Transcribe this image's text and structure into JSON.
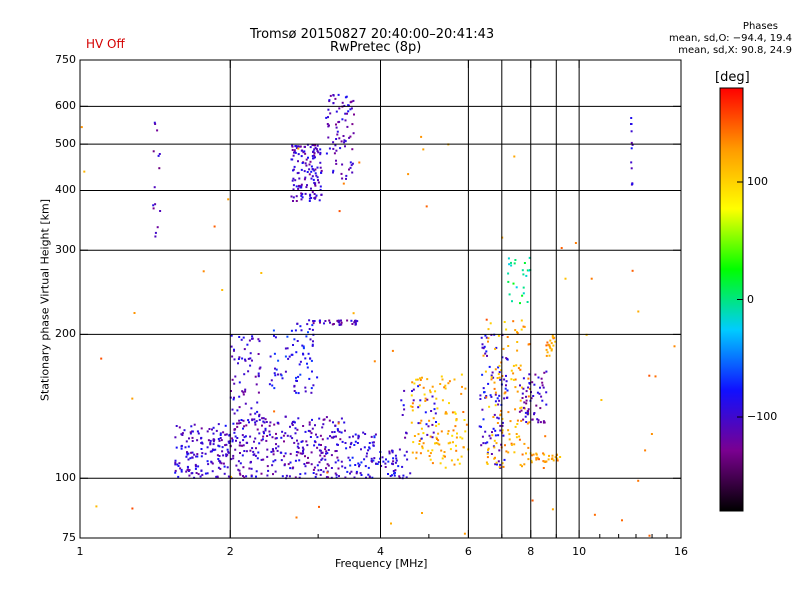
{
  "header": {
    "title_line1": "Tromsø 20150827 20:40:00–20:41:43",
    "title_line2": "RwPretec (8p)",
    "status_text": "HV Off",
    "stats_title": "Phases",
    "stats_o": "mean, sd,O: −94.4, 19.4",
    "stats_x": "mean, sd,X:  90.8, 24.9"
  },
  "chart_data": {
    "type": "scatter",
    "title": "Tromsø 20150827 20:40:00–20:41:43",
    "subtitle": "RwPretec (8p)",
    "xlabel": "Frequency [MHz]",
    "ylabel": "Stationary phase Virtual Height [km]",
    "xscale": "log",
    "yscale": "log",
    "xlim": [
      1,
      16
    ],
    "ylim": [
      75,
      750
    ],
    "x_ticks": [
      1,
      2,
      4,
      6,
      8,
      10,
      16
    ],
    "x_tick_labels": [
      "1",
      "2",
      "4",
      "6",
      "8",
      "10",
      "16"
    ],
    "x_grid": [
      2,
      4,
      6,
      7,
      8,
      9,
      10
    ],
    "y_ticks": [
      75,
      100,
      200,
      300,
      400,
      500,
      600,
      750
    ],
    "y_tick_labels": [
      "75",
      "100",
      "200",
      "300",
      "400",
      "500",
      "600",
      "750"
    ],
    "y_grid": [
      100,
      200,
      300,
      400,
      500,
      600
    ],
    "grid": true,
    "colorbar": {
      "label": "[deg]",
      "range": [
        -180,
        180
      ],
      "ticks": [
        100,
        0,
        -100
      ],
      "tick_labels": [
        "100",
        "0",
        "−100"
      ],
      "stops": [
        "#000000",
        "#7a0090",
        "#1010ff",
        "#00ccff",
        "#00ff00",
        "#ffff00",
        "#ff9900",
        "#ff0000"
      ],
      "placement": "right"
    },
    "clusters": [
      {
        "x_min": 1.55,
        "x_max": 2.0,
        "y_min": 100,
        "y_max": 130,
        "phase": -100,
        "n": 160
      },
      {
        "x_min": 2.0,
        "x_max": 3.4,
        "y_min": 100,
        "y_max": 135,
        "phase": -105,
        "n": 300
      },
      {
        "x_min": 3.4,
        "x_max": 4.0,
        "y_min": 100,
        "y_max": 125,
        "phase": -90,
        "n": 70
      },
      {
        "x_min": 2.0,
        "x_max": 2.3,
        "y_min": 130,
        "y_max": 200,
        "phase": -100,
        "n": 70
      },
      {
        "x_min": 2.4,
        "x_max": 3.0,
        "y_min": 150,
        "y_max": 215,
        "phase": -85,
        "n": 80
      },
      {
        "x_min": 2.65,
        "x_max": 3.05,
        "y_min": 380,
        "y_max": 500,
        "phase": -105,
        "n": 140
      },
      {
        "x_min": 3.1,
        "x_max": 3.55,
        "y_min": 420,
        "y_max": 640,
        "phase": -105,
        "n": 80
      },
      {
        "x_min": 2.85,
        "x_max": 3.6,
        "y_min": 209,
        "y_max": 214,
        "phase": -110,
        "n": 35
      },
      {
        "x_min": 4.0,
        "x_max": 4.6,
        "y_min": 100,
        "y_max": 115,
        "phase": -95,
        "n": 40
      },
      {
        "x_min": 4.6,
        "x_max": 6.0,
        "y_min": 105,
        "y_max": 165,
        "phase": 115,
        "n": 120
      },
      {
        "x_min": 4.4,
        "x_max": 5.2,
        "y_min": 120,
        "y_max": 160,
        "phase": -100,
        "n": 30
      },
      {
        "x_min": 6.3,
        "x_max": 7.2,
        "y_min": 105,
        "y_max": 200,
        "phase": -95,
        "n": 90
      },
      {
        "x_min": 6.5,
        "x_max": 8.0,
        "y_min": 105,
        "y_max": 215,
        "phase": 120,
        "n": 120
      },
      {
        "x_min": 7.6,
        "x_max": 8.6,
        "y_min": 130,
        "y_max": 170,
        "phase": -110,
        "n": 60
      },
      {
        "x_min": 7.2,
        "x_max": 8.0,
        "y_min": 230,
        "y_max": 290,
        "phase": 0,
        "n": 25
      },
      {
        "x_min": 8.6,
        "x_max": 9.0,
        "y_min": 180,
        "y_max": 200,
        "phase": 130,
        "n": 20
      },
      {
        "x_min": 8.0,
        "x_max": 9.2,
        "y_min": 108,
        "y_max": 113,
        "phase": 125,
        "n": 30
      },
      {
        "x_min": 1.4,
        "x_max": 1.45,
        "y_min": 300,
        "y_max": 560,
        "phase": -110,
        "n": 15
      },
      {
        "x_min": 12.7,
        "x_max": 12.8,
        "y_min": 400,
        "y_max": 580,
        "phase": -95,
        "n": 12
      },
      {
        "x_min": 1.0,
        "x_max": 16.0,
        "y_min": 75,
        "y_max": 600,
        "phase": 130,
        "n": 60
      }
    ]
  }
}
